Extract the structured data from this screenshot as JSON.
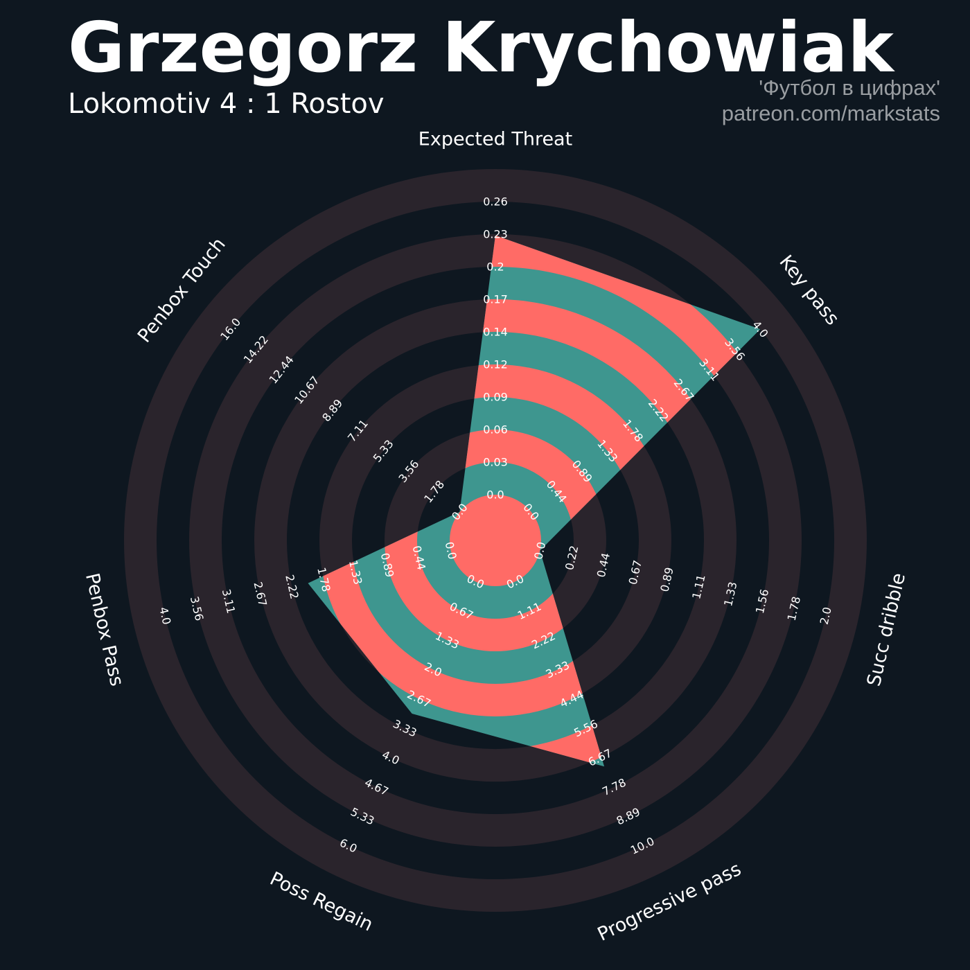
{
  "header": {
    "title": "Grzegorz Krychowiak",
    "subtitle": "Lokomotiv 4 : 1 Rostov",
    "credit_line1": "'Футбол в цифрах'",
    "credit_line2": "patreon.com/markstats"
  },
  "colors": {
    "background": "#0e1720",
    "ring_dark": "#2a242c",
    "fill_teal": "#3e968f",
    "fill_red": "#ff6b66",
    "text": "#ffffff",
    "credit": "#9a9ea2"
  },
  "chart_data": {
    "type": "radar",
    "axes": [
      {
        "label": "Expected Threat",
        "value": 0.23,
        "ticks": [
          "0.0",
          "0.03",
          "0.06",
          "0.09",
          "0.12",
          "0.14",
          "0.17",
          "0.2",
          "0.23",
          "0.26"
        ]
      },
      {
        "label": "Key pass",
        "value": 4.0,
        "ticks": [
          "0.0",
          "0.44",
          "0.89",
          "1.33",
          "1.78",
          "2.22",
          "2.67",
          "3.11",
          "3.56",
          "4.0"
        ]
      },
      {
        "label": "Succ dribble",
        "value": 0.0,
        "ticks": [
          "0.0",
          "0.22",
          "0.44",
          "0.67",
          "0.89",
          "1.11",
          "1.33",
          "1.56",
          "1.78",
          "2.0"
        ]
      },
      {
        "label": "Progressive pass",
        "value": 7.0,
        "ticks": [
          "0.0",
          "1.11",
          "2.22",
          "3.33",
          "4.44",
          "5.56",
          "6.67",
          "7.78",
          "8.89",
          "10.0"
        ]
      },
      {
        "label": "Poss Regain",
        "value": 3.0,
        "ticks": [
          "0.0",
          "0.67",
          "1.33",
          "2.0",
          "2.67",
          "3.33",
          "4.0",
          "4.67",
          "5.33",
          "6.0"
        ]
      },
      {
        "label": "Penbox Pass",
        "value": 2.0,
        "ticks": [
          "0.0",
          "0.44",
          "0.89",
          "1.33",
          "1.78",
          "2.22",
          "2.67",
          "3.11",
          "3.56",
          "4.0"
        ]
      },
      {
        "label": "Penbox Touch",
        "value": 0.0,
        "ticks": [
          "0.0",
          "1.78",
          "3.56",
          "5.33",
          "7.11",
          "8.89",
          "10.67",
          "12.44",
          "14.22",
          "16.0"
        ]
      }
    ]
  }
}
